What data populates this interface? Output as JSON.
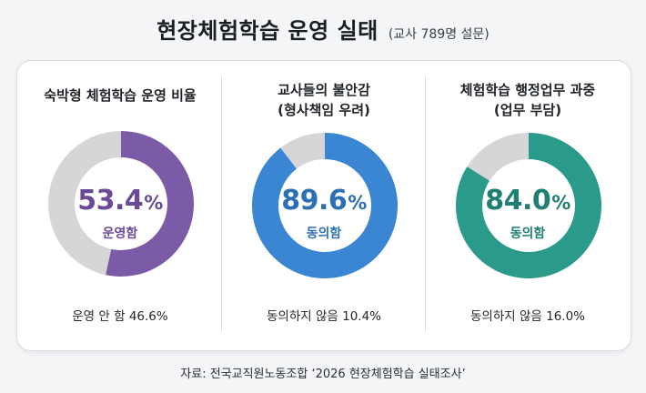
{
  "header": {
    "title": "현장체험학습 운영 실태",
    "subtitle": "(교사 789명 설문)"
  },
  "source": "자료: 전국교직원노동조합 ‘2026 현장체험학습 실태조사’",
  "chart_data": [
    {
      "type": "pie",
      "title_lines": [
        "숙박형 체험학습 운영 비율"
      ],
      "slices": [
        {
          "label": "운영함",
          "value": 53.4,
          "color": "#7b5aa6"
        },
        {
          "label": "운영 안 함",
          "value": 46.6,
          "color": "#d6d6d8"
        }
      ],
      "center_value": "53.4",
      "center_unit": "%",
      "center_label": "운영함",
      "accent": "#6a4a97",
      "footer": "운영 안 함 46.6%"
    },
    {
      "type": "pie",
      "title_lines": [
        "교사들의 불안감",
        "(형사책임 우려)"
      ],
      "slices": [
        {
          "label": "동의함",
          "value": 89.6,
          "color": "#3a86d3"
        },
        {
          "label": "동의하지 않음",
          "value": 10.4,
          "color": "#d6d6d8"
        }
      ],
      "center_value": "89.6",
      "center_unit": "%",
      "center_label": "동의함",
      "accent": "#2d6fb5",
      "footer": "동의하지 않음 10.4%"
    },
    {
      "type": "pie",
      "title_lines": [
        "체험학습 행정업무 과중",
        "(업무 부담)"
      ],
      "slices": [
        {
          "label": "동의함",
          "value": 84.0,
          "color": "#2a9a8a"
        },
        {
          "label": "동의하지 않음",
          "value": 16.0,
          "color": "#d6d6d8"
        }
      ],
      "center_value": "84.0",
      "center_unit": "%",
      "center_label": "동의함",
      "accent": "#1f7f72",
      "footer": "동의하지 않음 16.0%"
    }
  ]
}
